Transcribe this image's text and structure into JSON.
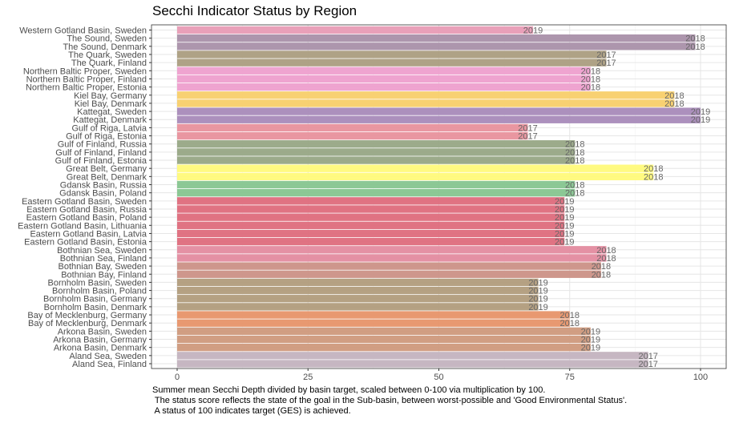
{
  "chart_data": {
    "type": "bar",
    "orientation": "horizontal",
    "title": "Secchi Indicator Status by Region",
    "xlabel": "",
    "ylabel": "",
    "xlim": [
      0,
      100
    ],
    "xticks": [
      "0",
      "25",
      "50",
      "75",
      "100"
    ],
    "grid": true,
    "legend": "none",
    "caption": [
      "Summer mean Secchi Depth divided by basin target, scaled between 0-100 via multiplication by 100.",
      " The status score reflects the state of the goal in the Sub-basin, between worst-possible and 'Good Environmental Status'.",
      " A status of 100 indicates target (GES) is achieved."
    ],
    "bars": [
      {
        "label": "Western Gotland Basin, Sweden",
        "value": 68,
        "year": "2019",
        "color": "#e89bb5"
      },
      {
        "label": "The Sound, Sweden",
        "value": 99,
        "year": "2018",
        "color": "#a990a9"
      },
      {
        "label": "The Sound, Denmark",
        "value": 99,
        "year": "2018",
        "color": "#a990a9"
      },
      {
        "label": "The Quark, Sweden",
        "value": 82,
        "year": "2017",
        "color": "#ab9d80"
      },
      {
        "label": "The Quark, Finland",
        "value": 82,
        "year": "2017",
        "color": "#ab9d80"
      },
      {
        "label": "Northern Baltic Proper, Sweden",
        "value": 79,
        "year": "2018",
        "color": "#ee9fce"
      },
      {
        "label": "Northern Baltic Proper, Finland",
        "value": 79,
        "year": "2018",
        "color": "#ee9fce"
      },
      {
        "label": "Northern Baltic Proper, Estonia",
        "value": 79,
        "year": "2018",
        "color": "#ee9fce"
      },
      {
        "label": "Kiel Bay, Germany",
        "value": 95,
        "year": "2018",
        "color": "#f8cf6a"
      },
      {
        "label": "Kiel Bay, Denmark",
        "value": 95,
        "year": "2018",
        "color": "#f8cf6a"
      },
      {
        "label": "Kattegat, Sweden",
        "value": 100,
        "year": "2019",
        "color": "#a88ab9"
      },
      {
        "label": "Kattegat, Denmark",
        "value": 100,
        "year": "2019",
        "color": "#a88ab9"
      },
      {
        "label": "Gulf of Riga, Latvia",
        "value": 67,
        "year": "2017",
        "color": "#e8919c"
      },
      {
        "label": "Gulf of Riga, Estonia",
        "value": 67,
        "year": "2017",
        "color": "#e8919c"
      },
      {
        "label": "Gulf of Finland, Russia",
        "value": 76,
        "year": "2018",
        "color": "#97a685"
      },
      {
        "label": "Gulf of Finland, Finland",
        "value": 76,
        "year": "2018",
        "color": "#97a685"
      },
      {
        "label": "Gulf of Finland, Estonia",
        "value": 76,
        "year": "2018",
        "color": "#97a685"
      },
      {
        "label": "Great Belt, Germany",
        "value": 91,
        "year": "2018",
        "color": "#fffa7a"
      },
      {
        "label": "Great Belt, Denmark",
        "value": 91,
        "year": "2018",
        "color": "#fffa7a"
      },
      {
        "label": "Gdansk Basin, Russia",
        "value": 76,
        "year": "2018",
        "color": "#86c58f"
      },
      {
        "label": "Gdansk Basin, Poland",
        "value": 76,
        "year": "2018",
        "color": "#86c58f"
      },
      {
        "label": "Eastern Gotland Basin, Sweden",
        "value": 74,
        "year": "2019",
        "color": "#de6b7c"
      },
      {
        "label": "Eastern Gotland Basin, Russia",
        "value": 74,
        "year": "2019",
        "color": "#de6b7c"
      },
      {
        "label": "Eastern Gotland Basin, Poland",
        "value": 74,
        "year": "2019",
        "color": "#de6b7c"
      },
      {
        "label": "Eastern Gotland Basin, Lithuania",
        "value": 74,
        "year": "2019",
        "color": "#de6b7c"
      },
      {
        "label": "Eastern Gotland Basin, Latvia",
        "value": 74,
        "year": "2019",
        "color": "#de6b7c"
      },
      {
        "label": "Eastern Gotland Basin, Estonia",
        "value": 74,
        "year": "2019",
        "color": "#de6b7c"
      },
      {
        "label": "Bothnian Sea, Sweden",
        "value": 82,
        "year": "2018",
        "color": "#e38b9f"
      },
      {
        "label": "Bothnian Sea, Finland",
        "value": 82,
        "year": "2018",
        "color": "#e38b9f"
      },
      {
        "label": "Bothnian Bay, Sweden",
        "value": 81,
        "year": "2018",
        "color": "#cb9186"
      },
      {
        "label": "Bothnian Bay, Finland",
        "value": 81,
        "year": "2018",
        "color": "#cb9186"
      },
      {
        "label": "Bornholm Basin, Sweden",
        "value": 69,
        "year": "2019",
        "color": "#b19c7c"
      },
      {
        "label": "Bornholm Basin, Poland",
        "value": 69,
        "year": "2019",
        "color": "#b19c7c"
      },
      {
        "label": "Bornholm Basin, Germany",
        "value": 69,
        "year": "2019",
        "color": "#b19c7c"
      },
      {
        "label": "Bornholm Basin, Denmark",
        "value": 69,
        "year": "2019",
        "color": "#b19c7c"
      },
      {
        "label": "Bay of Mecklenburg, Germany",
        "value": 75,
        "year": "2018",
        "color": "#e79369"
      },
      {
        "label": "Bay of Mecklenburg, Denmark",
        "value": 75,
        "year": "2018",
        "color": "#e79369"
      },
      {
        "label": "Arkona Basin, Sweden",
        "value": 79,
        "year": "2019",
        "color": "#cf997c"
      },
      {
        "label": "Arkona Basin, Germany",
        "value": 79,
        "year": "2019",
        "color": "#cf997c"
      },
      {
        "label": "Arkona Basin, Denmark",
        "value": 79,
        "year": "2019",
        "color": "#cf997c"
      },
      {
        "label": "Aland Sea, Sweden",
        "value": 90,
        "year": "2017",
        "color": "#c3b3bf"
      },
      {
        "label": "Aland Sea, Finland",
        "value": 90,
        "year": "2017",
        "color": "#c3b3bf"
      }
    ]
  },
  "colors": {
    "panel_background": "#ffffff",
    "grid_major": "#e6e6e6",
    "grid_minor": "#f2f2f2",
    "panel_border": "#333333",
    "tick_text": "#4d4d4d",
    "data_label_text": "#666666"
  }
}
